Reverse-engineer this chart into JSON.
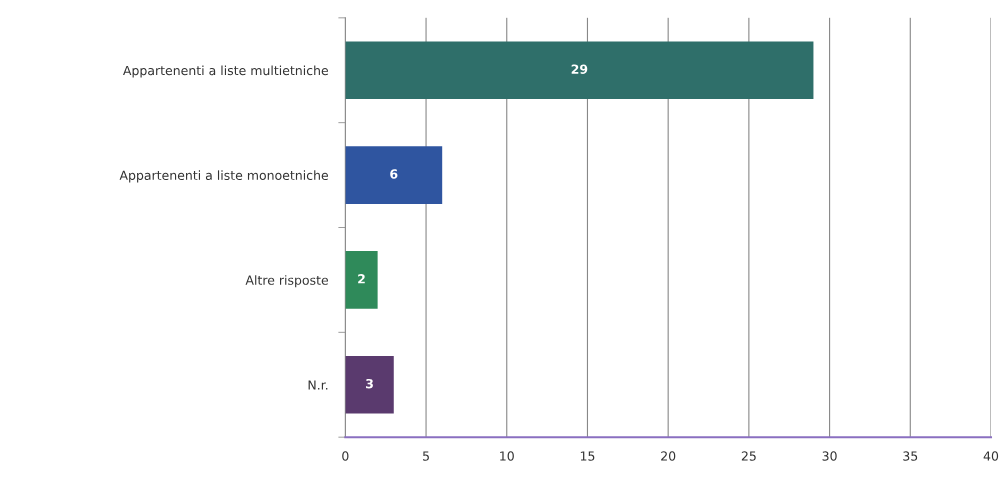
{
  "chart_data": {
    "type": "bar",
    "orientation": "horizontal",
    "categories": [
      "Appartenenti a liste multietniche",
      "Appartenenti a liste monoetniche",
      "Altre risposte",
      "N.r."
    ],
    "values": [
      29,
      6,
      2,
      3
    ],
    "colors": [
      "#2f6f6a",
      "#2f55a0",
      "#2f8a5a",
      "#5a3a6e"
    ],
    "xlim": [
      0,
      40
    ],
    "xticks": [
      0,
      5,
      10,
      15,
      20,
      25,
      30,
      35,
      40
    ],
    "grid": "x",
    "data_labels": true
  }
}
